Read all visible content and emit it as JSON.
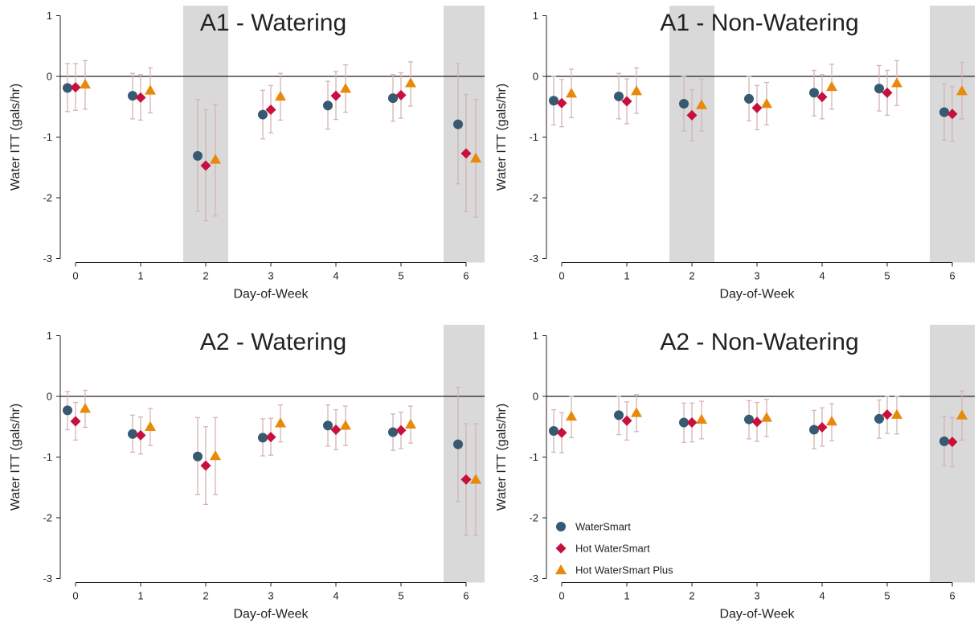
{
  "colors": {
    "watersmart": "#365a72",
    "hot_watersmart": "#c8103e",
    "hot_watersmart_plus": "#e8890a",
    "errorbar": "#d6b4b4",
    "shade": "#d9d9d9",
    "zero_line": "#222222"
  },
  "legend": {
    "placement": "bottom-left of bottom-right panel",
    "items": [
      {
        "label": "WaterSmart",
        "marker": "circle"
      },
      {
        "label": "Hot WaterSmart",
        "marker": "diamond"
      },
      {
        "label": "Hot WaterSmart Plus",
        "marker": "triangle"
      }
    ]
  },
  "chart_data": [
    {
      "type": "scatter",
      "title": "A1 - Watering",
      "xlabel": "Day-of-Week",
      "ylabel": "Water ITT (gals/hr)",
      "x": [
        0,
        1,
        2,
        3,
        4,
        5,
        6
      ],
      "xticks": [
        "0",
        "1",
        "2",
        "3",
        "4",
        "5",
        "6"
      ],
      "yticks": [
        "1",
        "0",
        "-1",
        "-2",
        "-3"
      ],
      "ylim": [
        -3,
        1
      ],
      "shaded_days": [
        2,
        6
      ],
      "reference_line": 0,
      "series": [
        {
          "name": "WaterSmart",
          "values": [
            -0.19,
            -0.32,
            -1.31,
            -0.63,
            -0.48,
            -0.36,
            -0.79
          ],
          "lower": [
            -0.58,
            -0.7,
            -2.22,
            -1.03,
            -0.87,
            -0.74,
            -1.77
          ],
          "upper": [
            0.21,
            0.05,
            -0.38,
            -0.23,
            -0.08,
            0.03,
            0.21
          ]
        },
        {
          "name": "Hot WaterSmart",
          "values": [
            -0.18,
            -0.35,
            -1.47,
            -0.55,
            -0.32,
            -0.31,
            -1.27
          ],
          "lower": [
            -0.56,
            -0.72,
            -2.38,
            -0.93,
            -0.71,
            -0.69,
            -2.23
          ],
          "upper": [
            0.21,
            0.03,
            -0.55,
            -0.15,
            0.08,
            0.06,
            -0.3
          ]
        },
        {
          "name": "Hot WaterSmart Plus",
          "values": [
            -0.13,
            -0.23,
            -1.37,
            -0.33,
            -0.2,
            -0.11,
            -1.35
          ],
          "lower": [
            -0.54,
            -0.6,
            -2.3,
            -0.72,
            -0.59,
            -0.49,
            -2.32
          ],
          "upper": [
            0.26,
            0.14,
            -0.46,
            0.05,
            0.19,
            0.24,
            -0.38
          ]
        }
      ]
    },
    {
      "type": "scatter",
      "title": "A1 - Non-Watering",
      "xlabel": "Day-of-Week",
      "ylabel": "Water ITT (gals/hr)",
      "x": [
        0,
        1,
        2,
        3,
        4,
        5,
        6
      ],
      "xticks": [
        "0",
        "1",
        "2",
        "3",
        "4",
        "5",
        "6"
      ],
      "yticks": [
        "1",
        "0",
        "-1",
        "-2",
        "-3"
      ],
      "ylim": [
        -3,
        1
      ],
      "shaded_days": [
        2,
        6
      ],
      "reference_line": 0,
      "series": [
        {
          "name": "WaterSmart",
          "values": [
            -0.4,
            -0.33,
            -0.45,
            -0.37,
            -0.27,
            -0.2,
            -0.59
          ],
          "lower": [
            -0.8,
            -0.7,
            -0.9,
            -0.73,
            -0.65,
            -0.57,
            -1.05
          ],
          "upper": [
            0.0,
            0.05,
            0.0,
            0.0,
            0.1,
            0.18,
            -0.12
          ]
        },
        {
          "name": "Hot WaterSmart",
          "values": [
            -0.44,
            -0.41,
            -0.64,
            -0.52,
            -0.34,
            -0.27,
            -0.62
          ],
          "lower": [
            -0.83,
            -0.78,
            -1.06,
            -0.88,
            -0.7,
            -0.64,
            -1.07
          ],
          "upper": [
            -0.05,
            -0.04,
            -0.22,
            -0.15,
            0.03,
            0.1,
            -0.17
          ]
        },
        {
          "name": "Hot WaterSmart Plus",
          "values": [
            -0.28,
            -0.24,
            -0.47,
            -0.45,
            -0.17,
            -0.11,
            -0.24
          ],
          "lower": [
            -0.68,
            -0.61,
            -0.9,
            -0.8,
            -0.54,
            -0.48,
            -0.7
          ],
          "upper": [
            0.12,
            0.14,
            -0.05,
            -0.1,
            0.2,
            0.26,
            0.23
          ]
        }
      ]
    },
    {
      "type": "scatter",
      "title": "A2 - Watering",
      "xlabel": "Day-of-Week",
      "ylabel": "Water ITT (gals/hr)",
      "x": [
        0,
        1,
        2,
        3,
        4,
        5,
        6
      ],
      "xticks": [
        "0",
        "1",
        "2",
        "3",
        "4",
        "5",
        "6"
      ],
      "yticks": [
        "1",
        "0",
        "-1",
        "-2",
        "-3"
      ],
      "ylim": [
        -3,
        1
      ],
      "shaded_days": [
        6
      ],
      "reference_line": 0,
      "series": [
        {
          "name": "WaterSmart",
          "values": [
            -0.23,
            -0.62,
            -0.99,
            -0.68,
            -0.48,
            -0.59,
            -0.79
          ],
          "lower": [
            -0.55,
            -0.92,
            -1.62,
            -0.98,
            -0.82,
            -0.89,
            -1.73
          ],
          "upper": [
            0.08,
            -0.31,
            -0.35,
            -0.37,
            -0.14,
            -0.29,
            0.15
          ]
        },
        {
          "name": "Hot WaterSmart",
          "values": [
            -0.41,
            -0.64,
            -1.14,
            -0.67,
            -0.55,
            -0.56,
            -1.37
          ],
          "lower": [
            -0.72,
            -0.95,
            -1.78,
            -0.97,
            -0.88,
            -0.86,
            -2.29
          ],
          "upper": [
            -0.1,
            -0.34,
            -0.5,
            -0.36,
            -0.22,
            -0.26,
            -0.45
          ]
        },
        {
          "name": "Hot WaterSmart Plus",
          "values": [
            -0.2,
            -0.5,
            -0.98,
            -0.44,
            -0.48,
            -0.46,
            -1.37
          ],
          "lower": [
            -0.51,
            -0.81,
            -1.62,
            -0.75,
            -0.81,
            -0.77,
            -2.29
          ],
          "upper": [
            0.1,
            -0.2,
            -0.35,
            -0.14,
            -0.16,
            -0.16,
            -0.45
          ]
        }
      ]
    },
    {
      "type": "scatter",
      "title": "A2 - Non-Watering",
      "xlabel": "Day-of-Week",
      "ylabel": "Water ITT (gals/hr)",
      "x": [
        0,
        1,
        2,
        3,
        4,
        5,
        6
      ],
      "xticks": [
        "0",
        "1",
        "2",
        "3",
        "4",
        "5",
        "6"
      ],
      "yticks": [
        "1",
        "0",
        "-1",
        "-2",
        "-3"
      ],
      "ylim": [
        -3,
        1
      ],
      "shaded_days": [
        6
      ],
      "reference_line": 0,
      "series": [
        {
          "name": "WaterSmart",
          "values": [
            -0.57,
            -0.31,
            -0.43,
            -0.38,
            -0.55,
            -0.37,
            -0.74
          ],
          "lower": [
            -0.92,
            -0.63,
            -0.76,
            -0.7,
            -0.86,
            -0.69,
            -1.14
          ],
          "upper": [
            -0.22,
            0.0,
            -0.11,
            -0.07,
            -0.23,
            -0.06,
            -0.33
          ]
        },
        {
          "name": "Hot WaterSmart",
          "values": [
            -0.6,
            -0.4,
            -0.43,
            -0.42,
            -0.51,
            -0.3,
            -0.75
          ],
          "lower": [
            -0.93,
            -0.72,
            -0.75,
            -0.74,
            -0.82,
            -0.61,
            -1.16
          ],
          "upper": [
            -0.27,
            -0.09,
            -0.11,
            -0.1,
            -0.19,
            0.0,
            -0.35
          ]
        },
        {
          "name": "Hot WaterSmart Plus",
          "values": [
            -0.33,
            -0.27,
            -0.38,
            -0.35,
            -0.41,
            -0.3,
            -0.31
          ],
          "lower": [
            -0.68,
            -0.58,
            -0.7,
            -0.66,
            -0.73,
            -0.62,
            -0.72
          ],
          "upper": [
            0.0,
            0.03,
            -0.08,
            -0.05,
            -0.12,
            0.0,
            0.09
          ]
        }
      ]
    }
  ]
}
